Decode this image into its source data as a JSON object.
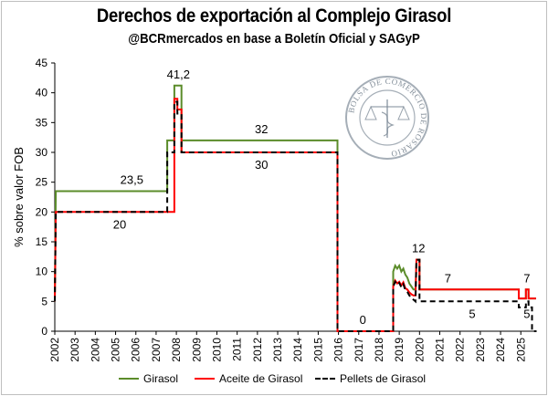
{
  "chart_data": {
    "type": "line",
    "title": "Derechos de exportación al Complejo Girasol",
    "subtitle": "@BCRmercados en base a Boletín Oficial y SAGyP",
    "ylabel": "% sobre valor FOB",
    "xlabel": "",
    "xlim": [
      2002,
      2025.8
    ],
    "ylim": [
      0,
      45
    ],
    "yticks": [
      0,
      5,
      10,
      15,
      20,
      25,
      30,
      35,
      40,
      45
    ],
    "xticks": [
      "2002",
      "2003",
      "2004",
      "2005",
      "2006",
      "2007",
      "2008",
      "2009",
      "2010",
      "2011",
      "2012",
      "2013",
      "2014",
      "2015",
      "2016",
      "2017",
      "2018",
      "2019",
      "2020",
      "2021",
      "2022",
      "2023",
      "2024",
      "2025"
    ],
    "grid": false,
    "legend_position": "bottom",
    "series": [
      {
        "name": "Girasol",
        "color": "#5b8c2a",
        "dash": "solid",
        "points": [
          [
            2002.0,
            5
          ],
          [
            2002.05,
            23.5
          ],
          [
            2007.55,
            23.5
          ],
          [
            2007.55,
            32
          ],
          [
            2007.9,
            32
          ],
          [
            2007.9,
            41.2
          ],
          [
            2008.25,
            41.2
          ],
          [
            2008.25,
            30
          ],
          [
            2008.25,
            32
          ],
          [
            2015.95,
            32
          ],
          [
            2015.95,
            0
          ],
          [
            2018.7,
            0
          ],
          [
            2018.7,
            10
          ],
          [
            2018.8,
            11
          ],
          [
            2018.9,
            10.5
          ],
          [
            2019.0,
            11
          ],
          [
            2019.1,
            10
          ],
          [
            2019.2,
            10.5
          ],
          [
            2019.3,
            9.5
          ],
          [
            2019.4,
            9
          ],
          [
            2019.5,
            8
          ],
          [
            2019.6,
            7.5
          ],
          [
            2019.7,
            7
          ],
          [
            2019.8,
            7
          ],
          [
            2019.85,
            12
          ],
          [
            2020.0,
            12
          ],
          [
            2020.0,
            7
          ],
          [
            2024.9,
            7
          ],
          [
            2024.9,
            5.5
          ],
          [
            2025.25,
            5.5
          ],
          [
            2025.25,
            7
          ],
          [
            2025.38,
            7
          ],
          [
            2025.38,
            5.5
          ],
          [
            2025.75,
            5.5
          ]
        ]
      },
      {
        "name": "Aceite de Girasol",
        "color": "#ff0000",
        "dash": "solid",
        "points": [
          [
            2002.0,
            5
          ],
          [
            2002.05,
            20
          ],
          [
            2007.9,
            20
          ],
          [
            2007.9,
            39
          ],
          [
            2008.05,
            39
          ],
          [
            2008.05,
            37.2
          ],
          [
            2008.25,
            37.2
          ],
          [
            2008.25,
            30
          ],
          [
            2015.95,
            30
          ],
          [
            2015.95,
            0
          ],
          [
            2018.7,
            0
          ],
          [
            2018.7,
            7.5
          ],
          [
            2018.8,
            8.5
          ],
          [
            2018.9,
            8
          ],
          [
            2019.0,
            8.3
          ],
          [
            2019.1,
            7.7
          ],
          [
            2019.2,
            8.2
          ],
          [
            2019.3,
            7.2
          ],
          [
            2019.4,
            7
          ],
          [
            2019.5,
            6.5
          ],
          [
            2019.6,
            6.2
          ],
          [
            2019.7,
            6
          ],
          [
            2019.8,
            6
          ],
          [
            2019.85,
            12
          ],
          [
            2020.0,
            12
          ],
          [
            2020.0,
            7
          ],
          [
            2024.9,
            7
          ],
          [
            2024.9,
            5.5
          ],
          [
            2025.25,
            5.5
          ],
          [
            2025.25,
            7
          ],
          [
            2025.38,
            7
          ],
          [
            2025.38,
            5.5
          ],
          [
            2025.75,
            5.5
          ]
        ]
      },
      {
        "name": "Pellets de Girasol",
        "color": "#000000",
        "dash": "dashed",
        "points": [
          [
            2002.0,
            5
          ],
          [
            2002.05,
            20
          ],
          [
            2007.55,
            20
          ],
          [
            2007.55,
            30
          ],
          [
            2007.9,
            30
          ],
          [
            2007.9,
            38.5
          ],
          [
            2008.05,
            38.5
          ],
          [
            2008.05,
            36.5
          ],
          [
            2008.25,
            36.5
          ],
          [
            2008.25,
            30
          ],
          [
            2015.95,
            30
          ],
          [
            2015.95,
            0
          ],
          [
            2018.7,
            0
          ],
          [
            2018.7,
            7.5
          ],
          [
            2018.8,
            8.3
          ],
          [
            2018.9,
            7.8
          ],
          [
            2019.0,
            8.1
          ],
          [
            2019.1,
            7.4
          ],
          [
            2019.2,
            7.9
          ],
          [
            2019.3,
            6.9
          ],
          [
            2019.4,
            6.6
          ],
          [
            2019.5,
            6
          ],
          [
            2019.6,
            5.6
          ],
          [
            2019.7,
            5.3
          ],
          [
            2019.8,
            5
          ],
          [
            2019.85,
            12
          ],
          [
            2020.0,
            12
          ],
          [
            2020.0,
            5
          ],
          [
            2024.9,
            5
          ],
          [
            2024.9,
            4
          ],
          [
            2025.25,
            4
          ],
          [
            2025.25,
            5
          ],
          [
            2025.38,
            5
          ],
          [
            2025.38,
            4
          ],
          [
            2025.55,
            4
          ],
          [
            2025.55,
            0
          ],
          [
            2025.75,
            0
          ]
        ]
      }
    ],
    "annotations": [
      {
        "text": "23,5",
        "x": 2005.8,
        "y": 23.5,
        "pos": "above"
      },
      {
        "text": "20",
        "x": 2005.2,
        "y": 20,
        "pos": "below"
      },
      {
        "text": "41,2",
        "x": 2008.1,
        "y": 41.2,
        "pos": "above"
      },
      {
        "text": "32",
        "x": 2012.2,
        "y": 32,
        "pos": "above"
      },
      {
        "text": "30",
        "x": 2012.2,
        "y": 30,
        "pos": "below"
      },
      {
        "text": "0",
        "x": 2017.2,
        "y": 0,
        "pos": "above"
      },
      {
        "text": "12",
        "x": 2019.95,
        "y": 12,
        "pos": "above"
      },
      {
        "text": "7",
        "x": 2021.4,
        "y": 7,
        "pos": "above"
      },
      {
        "text": "5",
        "x": 2022.6,
        "y": 5,
        "pos": "below"
      },
      {
        "text": "7",
        "x": 2025.3,
        "y": 7,
        "pos": "above"
      },
      {
        "text": "5",
        "x": 2025.3,
        "y": 5,
        "pos": "below"
      }
    ],
    "watermark": "BOLSA DE COMERCIO DE ROSARIO"
  }
}
